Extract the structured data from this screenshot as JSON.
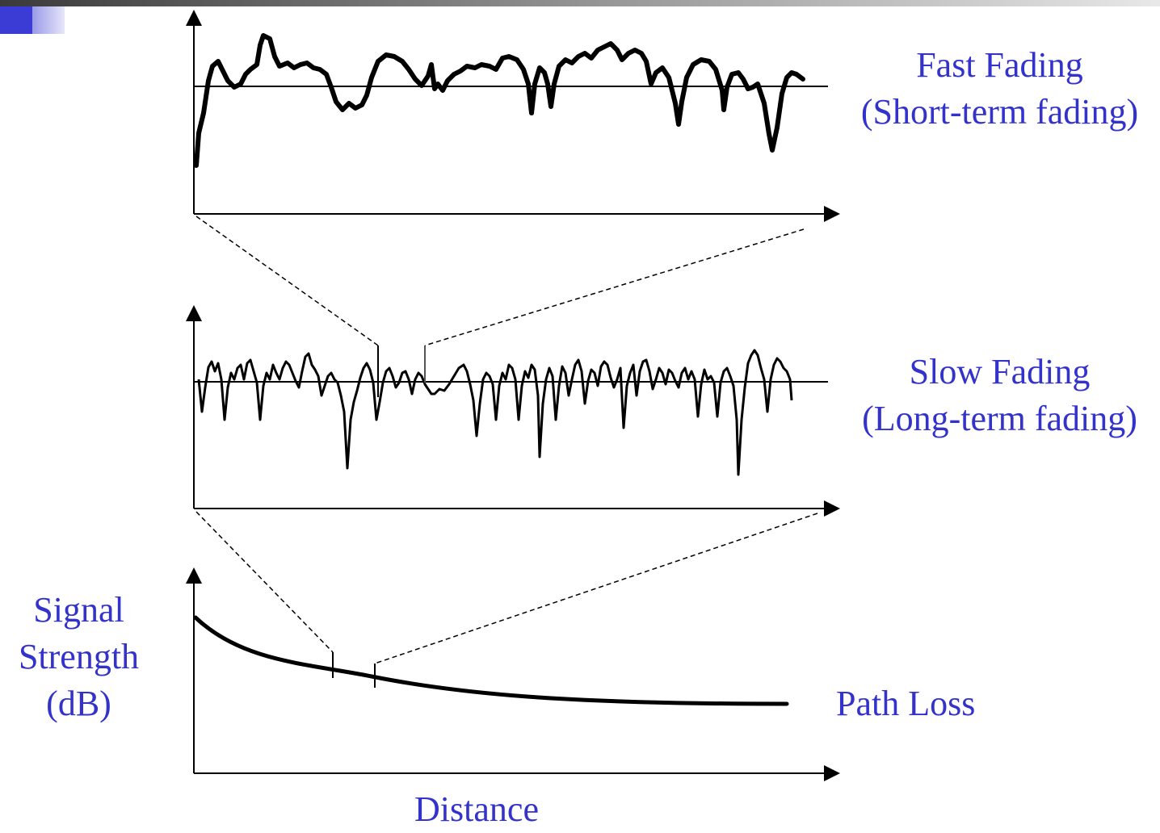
{
  "labels": {
    "fast_fading": [
      "Fast Fading",
      "(Short-term fading)"
    ],
    "slow_fading": [
      "Slow Fading",
      "(Long-term fading)"
    ],
    "signal_strength": [
      "Signal",
      "Strength",
      "(dB)"
    ],
    "path_loss": "Path Loss",
    "distance": "Distance"
  },
  "colors": {
    "label": "#3333cc",
    "line": "#000000",
    "header_bar": "#5a5a5a",
    "corner_accent": "#3b3bd6"
  }
}
